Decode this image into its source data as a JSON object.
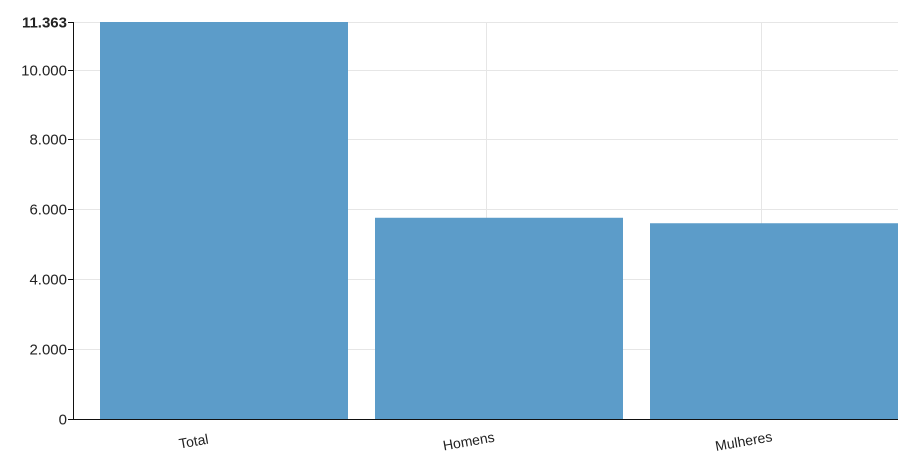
{
  "chart_data": {
    "type": "bar",
    "categories": [
      "Total",
      "Homens",
      "Mulheres"
    ],
    "values": [
      11363,
      5760,
      5603
    ],
    "ylim": [
      0,
      11363
    ],
    "y_ticks": [
      0,
      2000,
      4000,
      6000,
      8000,
      10000,
      11363
    ],
    "y_tick_labels": [
      "0",
      "2.000",
      "4.000",
      "6.000",
      "8.000",
      "10.000",
      "11.363"
    ],
    "title": "",
    "xlabel": "",
    "ylabel": "",
    "grid": true,
    "legend": "none",
    "bar_color": "#5799c7"
  }
}
